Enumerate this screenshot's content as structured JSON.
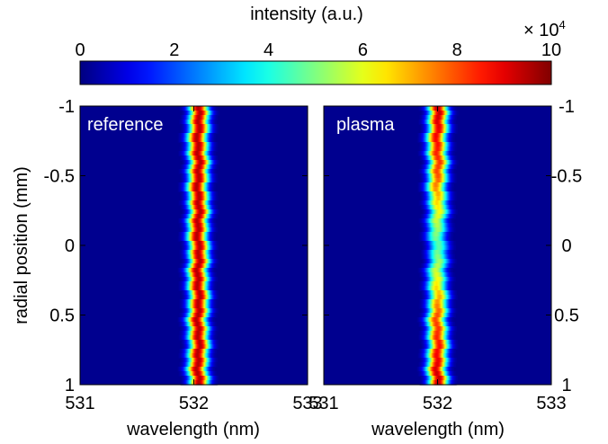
{
  "chart_data": [
    {
      "type": "heatmap",
      "panel": "reference",
      "annotation": "reference",
      "xlabel": "wavelength (nm)",
      "ylabel": "radial position (mm)",
      "xlim": [
        531,
        533
      ],
      "ylim": [
        -1,
        1
      ],
      "x_ticks": [
        "531",
        "532",
        "533"
      ],
      "y_ticks": [
        "-1",
        "-0.5",
        "0",
        "0.5",
        "1"
      ],
      "line_center_nm": 532.04,
      "line_fwhm_nm": 0.14,
      "radial_position_mm": [
        -1,
        -0.5,
        0,
        0.5,
        1
      ],
      "peak_intensity": [
        95000,
        95000,
        95000,
        95000,
        95000
      ]
    },
    {
      "type": "heatmap",
      "panel": "plasma",
      "annotation": "plasma",
      "xlabel": "wavelength (nm)",
      "xlim": [
        531,
        533
      ],
      "ylim": [
        -1,
        1
      ],
      "x_ticks": [
        "531",
        "532",
        "533"
      ],
      "y_ticks": [
        "-1",
        "-0.5",
        "0",
        "0.5",
        "1"
      ],
      "line_center_nm": 532.0,
      "line_fwhm_nm": 0.14,
      "radial_position_mm": [
        -1,
        -0.5,
        0,
        0.5,
        1
      ],
      "peak_intensity": [
        95000,
        80000,
        45000,
        80000,
        95000
      ]
    }
  ],
  "colorbar": {
    "label": "intensity (a.u.)",
    "multiplier": "× 10",
    "multiplier_exp": "4",
    "range": [
      0,
      10
    ],
    "ticks": [
      "0",
      "2",
      "4",
      "6",
      "8",
      "10"
    ],
    "colormap": "jet",
    "colors": [
      "#00008f",
      "#0000ff",
      "#00ffff",
      "#ffff00",
      "#ff0000",
      "#800000"
    ],
    "background": "#00008f"
  }
}
